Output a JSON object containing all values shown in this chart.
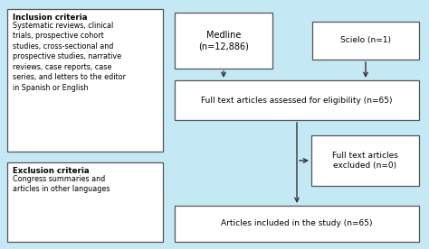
{
  "bg_color": "#c5e8f5",
  "box_color": "#ffffff",
  "box_edge": "#555555",
  "text_color": "#000000",
  "fig_width": 4.74,
  "fig_height": 2.76,
  "dpi": 100,
  "inclusion_title": "Inclusion criteria",
  "inclusion_body": "Systematic reviews, clinical\ntrials, prospective cohort\nstudies, cross-sectional and\nprospective studies, narrative\nreviews, case reports, case\nseries, and letters to the editor\nin Spanish or English",
  "exclusion_title": "Exclusion criteria",
  "exclusion_body": "Congress summaries and\narticles in other languages",
  "medline_text": "Medline\n(n=12,886)",
  "scielo_text": "Scielo (n=1)",
  "full_text_assessed": "Full text articles assessed for eligibility (n=65)",
  "full_text_excluded": "Full text articles\nexcluded (n=0)",
  "articles_included": "Articles included in the study (n=65)",
  "lw": 0.9,
  "arrow_lw": 1.0,
  "arrow_ms": 8,
  "fontsize_body": 5.8,
  "fontsize_bold": 6.2,
  "fontsize_flow": 6.5,
  "fontsize_medline": 7.0
}
